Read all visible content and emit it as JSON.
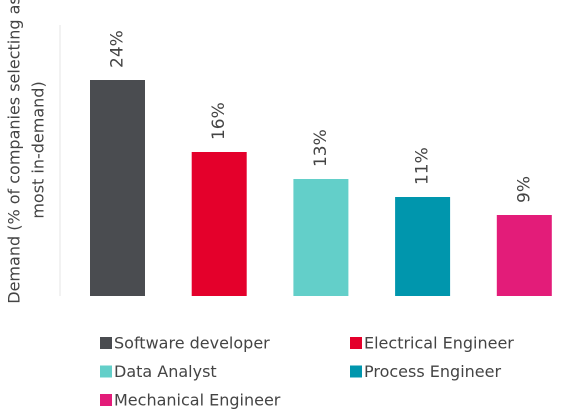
{
  "chart_data": {
    "type": "bar",
    "y_label_lines": [
      "Demand (% of companies selecting as",
      "most in-demand)"
    ],
    "categories": [
      "Software developer",
      "Electrical Engineer",
      "Data Analyst",
      "Process Engineer",
      "Mechanical Engineer"
    ],
    "values": [
      24,
      16,
      13,
      11,
      9
    ],
    "value_labels": [
      "24%",
      "16%",
      "13%",
      "11%",
      "9%"
    ],
    "colors": [
      "#4a4c50",
      "#e4002b",
      "#63cfc9",
      "#0096ad",
      "#e31c79"
    ],
    "ylim": [
      0,
      24
    ],
    "legend": "bottom"
  }
}
